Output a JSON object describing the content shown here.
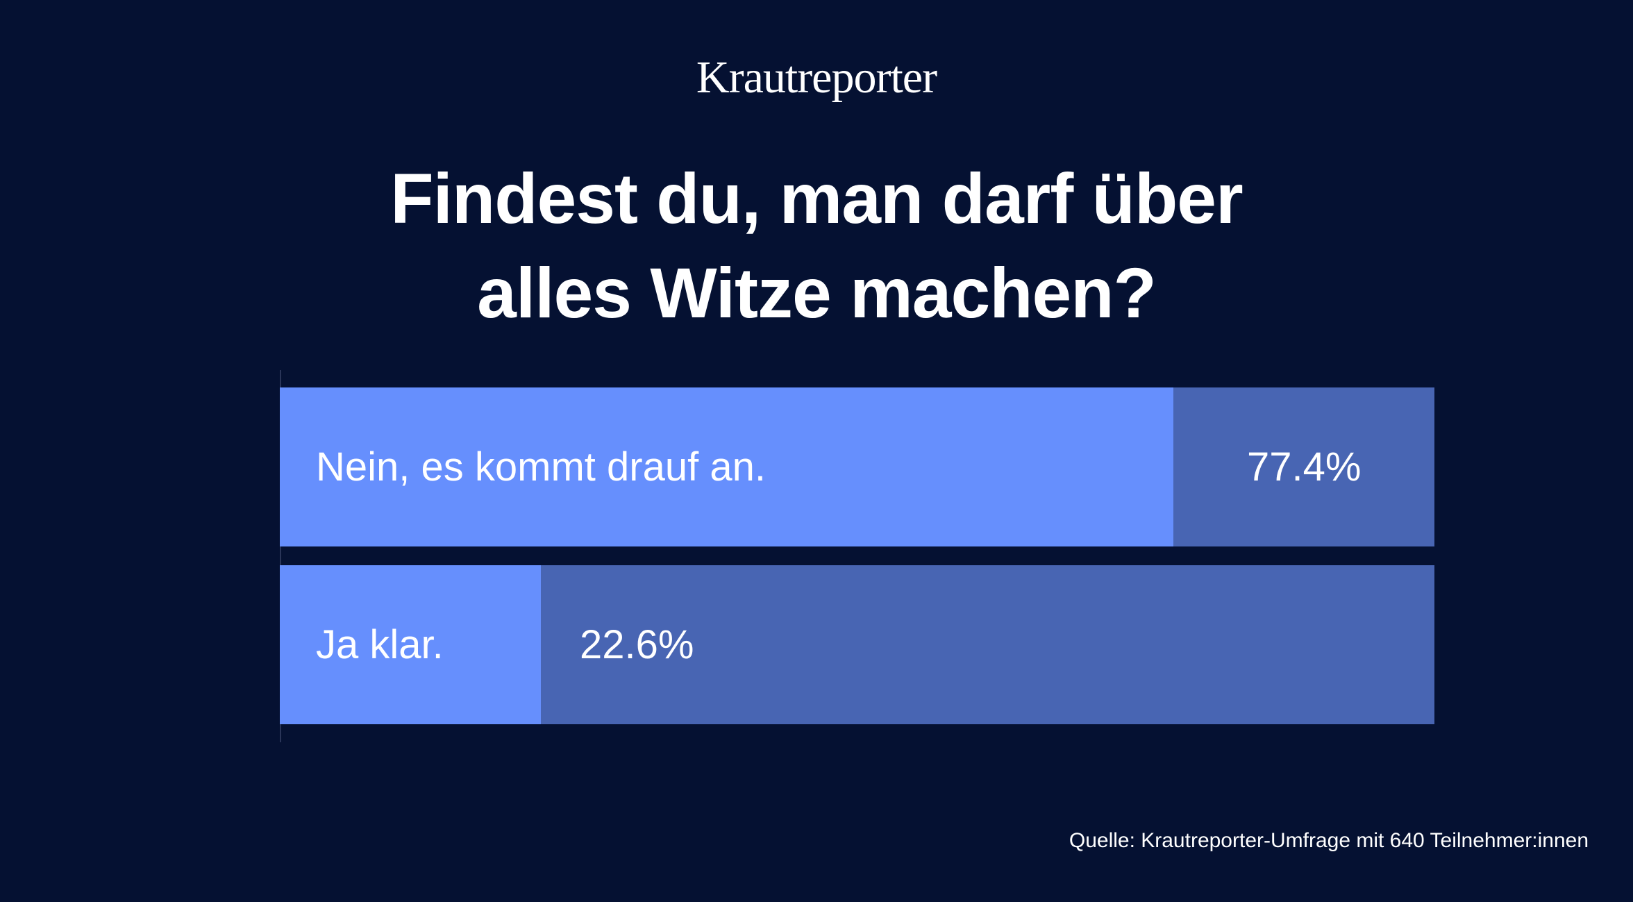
{
  "brand": "Krautreporter",
  "title_lines": [
    "Findest du, man darf über",
    "alles Witze machen?"
  ],
  "chart_data": {
    "type": "bar",
    "orientation": "horizontal",
    "title": "Findest du, man darf über alles Witze machen?",
    "categories": [
      "Nein, es kommt drauf an.",
      "Ja klar."
    ],
    "values": [
      77.4,
      22.6
    ],
    "value_labels": [
      "77.4%",
      "22.6%"
    ],
    "xlim": [
      0,
      100
    ],
    "grid": false,
    "colors": {
      "fill": "#668ffd",
      "track": "#4865b3",
      "background": "#051132"
    }
  },
  "source": "Quelle: Krautreporter-Umfrage mit 640 Teilnehmer:innen"
}
